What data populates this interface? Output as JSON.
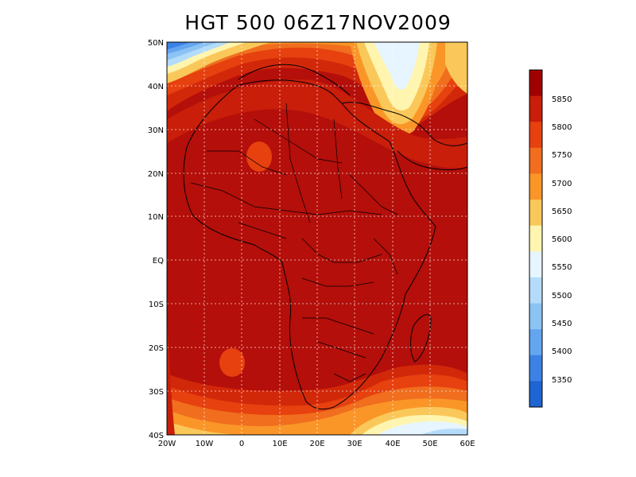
{
  "title": "HGT 500 06Z17NOV2009",
  "map": {
    "region": "Africa",
    "lat_labels": [
      "50N",
      "40N",
      "30N",
      "20N",
      "10N",
      "EQ",
      "10S",
      "20S",
      "30S",
      "40S"
    ],
    "lon_labels": [
      "20W",
      "10W",
      "0",
      "10E",
      "20E",
      "30E",
      "40E",
      "50E",
      "60E"
    ],
    "grid": "dotted",
    "field": "500 hPa geopotential height"
  },
  "colorbar": {
    "labels": [
      "5850",
      "5800",
      "5750",
      "5700",
      "5650",
      "5600",
      "5550",
      "5500",
      "5450",
      "5400",
      "5350"
    ],
    "colors": [
      "#a00000",
      "#c81e0a",
      "#e6410f",
      "#f06e1e",
      "#fa9628",
      "#fac85a",
      "#fff5af",
      "#e6f5ff",
      "#b4dcfa",
      "#8cc3f5",
      "#64a5f0",
      "#3c82e6",
      "#1e64d2"
    ]
  }
}
